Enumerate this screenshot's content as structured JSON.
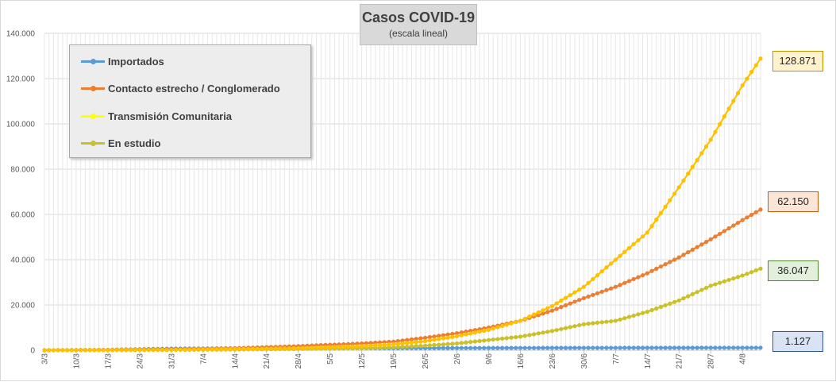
{
  "chart_data": {
    "type": "line",
    "title": "Casos COVID-19",
    "subtitle": "(escala lineal)",
    "xlabel": "",
    "ylabel": "",
    "ylim": [
      0,
      140000
    ],
    "yticks": [
      0,
      20000,
      40000,
      60000,
      80000,
      100000,
      120000,
      140000
    ],
    "ytick_labels": [
      "0",
      "20.000",
      "40.000",
      "60.000",
      "80.000",
      "100.000",
      "120.000",
      "140.000"
    ],
    "x_start": "3/3",
    "x_end": "8/8",
    "x_tick_labels": [
      "3/3",
      "10/3",
      "17/3",
      "24/3",
      "31/3",
      "7/4",
      "14/4",
      "21/4",
      "28/4",
      "5/5",
      "12/5",
      "19/5",
      "26/5",
      "2/6",
      "9/6",
      "16/6",
      "23/6",
      "30/6",
      "7/7",
      "14/7",
      "21/7",
      "28/7",
      "4/8"
    ],
    "grid": true,
    "legend": "top-left",
    "series": [
      {
        "name": "Importados",
        "color": "#5b9bd5",
        "last_value_label": "1.127",
        "callout_bg": "#dae3f3",
        "callout_border": "#2f5597",
        "points": [
          [
            "3/3",
            0
          ],
          [
            "17/3",
            200
          ],
          [
            "31/3",
            700
          ],
          [
            "14/4",
            850
          ],
          [
            "28/4",
            880
          ],
          [
            "12/5",
            900
          ],
          [
            "26/5",
            950
          ],
          [
            "9/6",
            1000
          ],
          [
            "23/6",
            1050
          ],
          [
            "7/7",
            1080
          ],
          [
            "21/7",
            1100
          ],
          [
            "4/8",
            1120
          ],
          [
            "8/8",
            1127
          ]
        ]
      },
      {
        "name": "Contacto estrecho / Conglomerado",
        "color": "#ed7d31",
        "last_value_label": "62.150",
        "callout_bg": "#fbe5d6",
        "callout_border": "#c55a11",
        "points": [
          [
            "3/3",
            0
          ],
          [
            "17/3",
            150
          ],
          [
            "31/3",
            400
          ],
          [
            "14/4",
            900
          ],
          [
            "28/4",
            1800
          ],
          [
            "12/5",
            3000
          ],
          [
            "19/5",
            3800
          ],
          [
            "26/5",
            5500
          ],
          [
            "2/6",
            7500
          ],
          [
            "9/6",
            10000
          ],
          [
            "16/6",
            13000
          ],
          [
            "23/6",
            17500
          ],
          [
            "30/6",
            23000
          ],
          [
            "7/7",
            28000
          ],
          [
            "14/7",
            34000
          ],
          [
            "21/7",
            41000
          ],
          [
            "28/7",
            49000
          ],
          [
            "4/8",
            57500
          ],
          [
            "8/8",
            62150
          ]
        ]
      },
      {
        "name": "Transmisión Comunitaria",
        "color": "#ffc000",
        "last_value_label": "128.871",
        "callout_bg": "#fff2cc",
        "callout_border": "#bf9000",
        "points": [
          [
            "3/3",
            0
          ],
          [
            "17/3",
            50
          ],
          [
            "31/3",
            200
          ],
          [
            "14/4",
            500
          ],
          [
            "28/4",
            900
          ],
          [
            "12/5",
            1800
          ],
          [
            "19/5",
            2600
          ],
          [
            "26/5",
            4000
          ],
          [
            "2/6",
            6200
          ],
          [
            "9/6",
            9000
          ],
          [
            "16/6",
            13000
          ],
          [
            "23/6",
            19500
          ],
          [
            "30/6",
            28000
          ],
          [
            "7/7",
            40000
          ],
          [
            "14/7",
            52000
          ],
          [
            "21/7",
            72000
          ],
          [
            "28/7",
            93000
          ],
          [
            "4/8",
            117000
          ],
          [
            "8/8",
            128871
          ]
        ]
      },
      {
        "name": "En estudio",
        "color": "#c9c02a",
        "last_value_label": "36.047",
        "callout_bg": "#e2efda",
        "callout_border": "#548235",
        "points": [
          [
            "3/3",
            0
          ],
          [
            "17/3",
            50
          ],
          [
            "31/3",
            150
          ],
          [
            "14/4",
            300
          ],
          [
            "28/4",
            600
          ],
          [
            "12/5",
            900
          ],
          [
            "19/5",
            1300
          ],
          [
            "26/5",
            2000
          ],
          [
            "2/6",
            3000
          ],
          [
            "9/6",
            4500
          ],
          [
            "16/6",
            6000
          ],
          [
            "23/6",
            8500
          ],
          [
            "30/6",
            11500
          ],
          [
            "7/7",
            13000
          ],
          [
            "14/7",
            17000
          ],
          [
            "21/7",
            22000
          ],
          [
            "28/7",
            28500
          ],
          [
            "4/8",
            33000
          ],
          [
            "8/8",
            36047
          ]
        ]
      }
    ]
  }
}
